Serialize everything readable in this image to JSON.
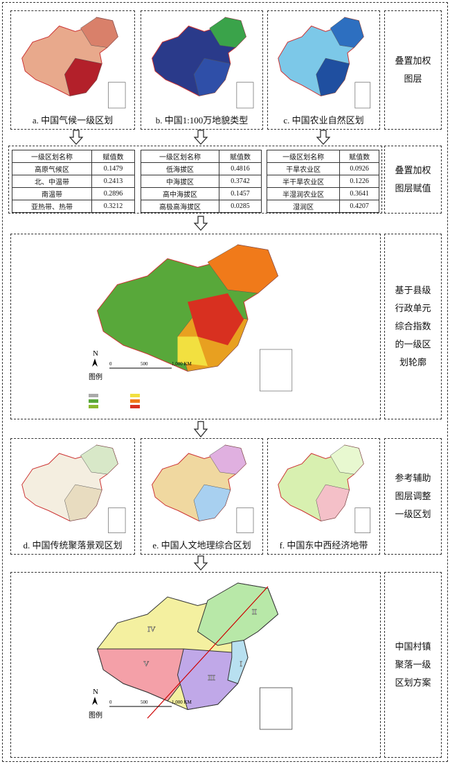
{
  "row1_captions": [
    "a. 中国气候一级区划",
    "b. 中国1:100万地貌类型",
    "c. 中国农业自然区划"
  ],
  "side_labels": [
    [
      "叠置加权",
      "图层"
    ],
    [
      "叠置加权",
      "图层赋值"
    ],
    [
      "基于县级",
      "行政单元",
      "综合指数",
      "的一级区",
      "划轮廓"
    ],
    [
      "参考辅助",
      "图层调整",
      "一级区划"
    ],
    [
      "中国村镇",
      "聚落一级",
      "区划方案"
    ]
  ],
  "tables": [
    {
      "headers": [
        "一级区划名称",
        "赋值数"
      ],
      "rows": [
        [
          "高原气候区",
          0.1479
        ],
        [
          "北、中温带",
          0.2413
        ],
        [
          "南温带",
          0.2896
        ],
        [
          "亚热带、热带",
          0.3212
        ]
      ]
    },
    {
      "headers": [
        "一级区划名称",
        "赋值数"
      ],
      "rows": [
        [
          "低海拔区",
          0.4816
        ],
        [
          "中海拔区",
          0.3742
        ],
        [
          "高中海拔区",
          0.1457
        ],
        [
          "高极高海拔区",
          0.0285
        ]
      ]
    },
    {
      "headers": [
        "一级区划名称",
        "赋值数"
      ],
      "rows": [
        [
          "干旱农业区",
          0.0926
        ],
        [
          "半干旱农业区",
          0.1226
        ],
        [
          "半湿润农业区",
          0.3641
        ],
        [
          "湿润区",
          0.4207
        ]
      ]
    }
  ],
  "map_texts": {
    "north": "N",
    "legend": "图例",
    "scale": [
      "0",
      "500",
      "1,000 KM"
    ]
  },
  "row4_captions": [
    "d. 中国传统聚落景观区划",
    "e. 中国人文地理综合区划",
    "f. 中国东中西经济地带"
  ],
  "final_regions": [
    "IV",
    "V",
    "II",
    "III",
    "I"
  ]
}
